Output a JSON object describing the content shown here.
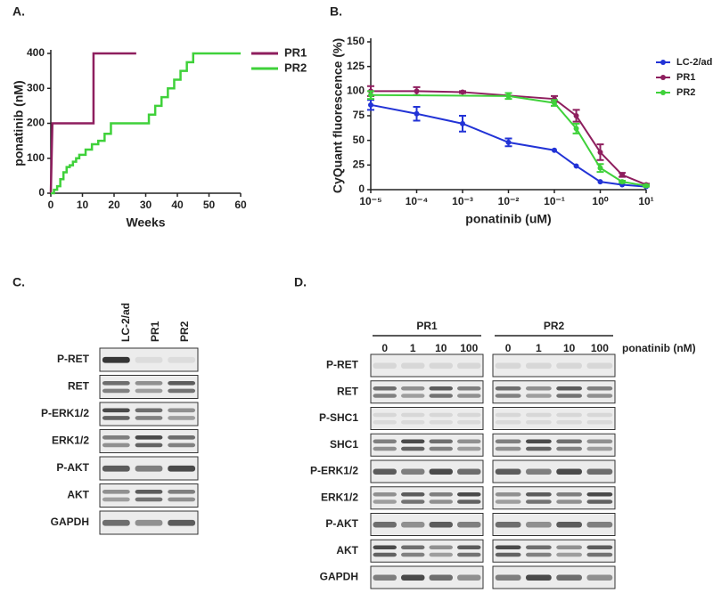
{
  "figure_labels": [
    "A.",
    "B.",
    "C.",
    "D."
  ],
  "chart_data": [
    {
      "type": "line",
      "ylabel": "ponatinib (nM)",
      "xlabel": "Weeks",
      "xlim": [
        0,
        60
      ],
      "xticks": [
        0,
        10,
        20,
        30,
        40,
        50,
        60
      ],
      "ylim": [
        0,
        400
      ],
      "yticks": [
        0,
        100,
        200,
        300,
        400
      ],
      "series": [
        {
          "name": "PR1",
          "color": "#8e1e5e",
          "x": [
            0,
            0.5,
            13.5,
            13.5,
            27
          ],
          "values": [
            0,
            200,
            200,
            400,
            400
          ]
        },
        {
          "name": "PR2",
          "color": "#3fd13a",
          "x": [
            0,
            1,
            1,
            2,
            2,
            3,
            3,
            4,
            4,
            5,
            5,
            6,
            6,
            7,
            7,
            8,
            8,
            9,
            9,
            11,
            11,
            13,
            13,
            15,
            15,
            17,
            17,
            19,
            19,
            31,
            31,
            33,
            33,
            35,
            35,
            37,
            37,
            39,
            39,
            41,
            41,
            43,
            43,
            45,
            45,
            60
          ],
          "values": [
            0,
            0,
            10,
            10,
            20,
            20,
            40,
            40,
            60,
            60,
            75,
            75,
            80,
            80,
            90,
            90,
            100,
            100,
            110,
            110,
            125,
            125,
            140,
            140,
            150,
            150,
            170,
            170,
            200,
            200,
            225,
            225,
            250,
            250,
            275,
            275,
            300,
            300,
            325,
            325,
            350,
            350,
            375,
            375,
            400,
            400
          ]
        }
      ]
    },
    {
      "type": "dose_response",
      "ylabel": "CyQuant fluorescence (%)",
      "xlabel": "ponatinib (uM)",
      "xscale": "log",
      "xlim": [
        1e-05,
        10
      ],
      "xticks": [
        {
          "value": 1e-05,
          "label": "10⁻⁵"
        },
        {
          "value": 0.0001,
          "label": "10⁻⁴"
        },
        {
          "value": 0.001,
          "label": "10⁻³"
        },
        {
          "value": 0.01,
          "label": "10⁻²"
        },
        {
          "value": 0.1,
          "label": "10⁻¹"
        },
        {
          "value": 1,
          "label": "10⁰"
        },
        {
          "value": 10,
          "label": "10¹"
        }
      ],
      "ylim": [
        0,
        150
      ],
      "yticks": [
        0,
        25,
        50,
        75,
        100,
        125,
        150
      ],
      "legend": "top-right",
      "series": [
        {
          "name": "LC-2/ad",
          "color": "#2233d6",
          "x": [
            1e-05,
            0.0001,
            0.001,
            0.01,
            0.1,
            0.3,
            1,
            3,
            10
          ],
          "values": [
            86,
            77,
            67,
            48,
            40,
            24,
            8,
            5,
            3
          ],
          "errors": [
            5,
            7,
            8,
            4,
            0,
            0,
            0,
            0,
            0
          ]
        },
        {
          "name": "PR1",
          "color": "#8e1e5e",
          "x": [
            1e-05,
            0.0001,
            0.001,
            0.1,
            0.3,
            1,
            3,
            10
          ],
          "values": [
            100,
            100,
            99,
            92,
            75,
            38,
            15,
            5
          ],
          "errors": [
            5,
            4,
            1,
            3,
            6,
            8,
            2,
            1
          ]
        },
        {
          "name": "PR2",
          "color": "#3fd13a",
          "x": [
            1e-05,
            0.01,
            0.1,
            0.3,
            1,
            3,
            10
          ],
          "values": [
            96,
            95,
            88,
            62,
            22,
            8,
            4
          ],
          "errors": [
            4,
            3,
            3,
            5,
            4,
            1,
            1
          ]
        }
      ]
    }
  ],
  "blot_c": {
    "lanes": [
      "LC-2/ad",
      "PR1",
      "PR2"
    ],
    "rows": [
      "P-RET",
      "RET",
      "P-ERK1/2",
      "ERK1/2",
      "P-AKT",
      "AKT",
      "GAPDH"
    ]
  },
  "blot_d": {
    "groups": [
      "PR1",
      "PR2"
    ],
    "doses": [
      "0",
      "1",
      "10",
      "100"
    ],
    "dose_label": "ponatinib (nM)",
    "rows": [
      "P-RET",
      "RET",
      "P-SHC1",
      "SHC1",
      "P-ERK1/2",
      "ERK1/2",
      "P-AKT",
      "AKT",
      "GAPDH"
    ]
  }
}
